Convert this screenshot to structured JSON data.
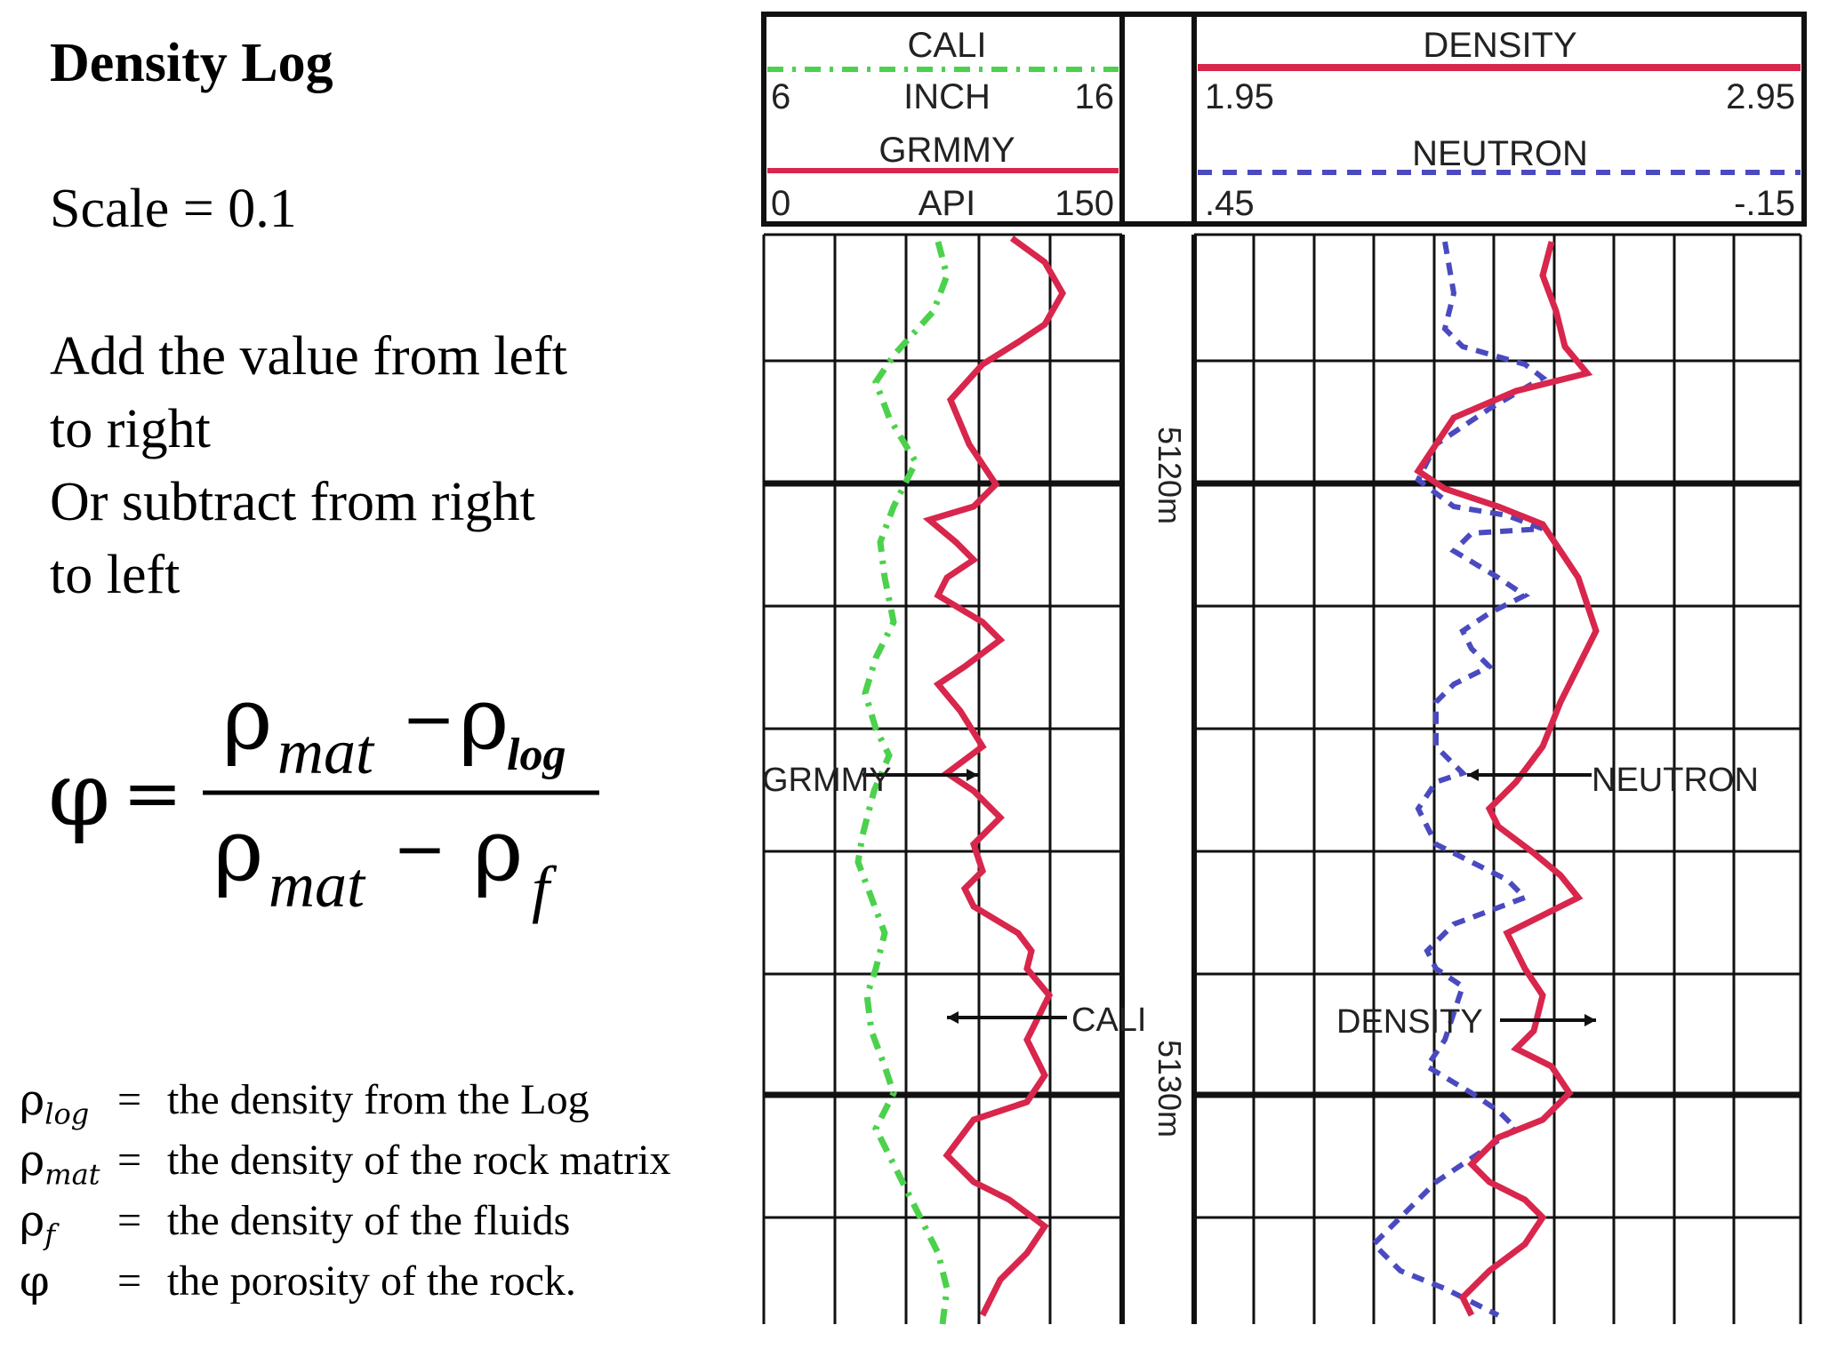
{
  "title": "Density Log",
  "scale": "Scale = 0.1",
  "instructions": [
    "Add the value from left",
    "to right",
    "Or subtract from right",
    "to left"
  ],
  "formula": {
    "lhs": "φ",
    "equals": "=",
    "rho": "ρ",
    "mat": "mat",
    "log": "log",
    "f": "f",
    "minus": "−"
  },
  "legend": [
    {
      "sym": "ρ",
      "sub": "log",
      "eq": "=",
      "desc": "the density from the Log"
    },
    {
      "sym": "ρ",
      "sub": "mat",
      "eq": "=",
      "desc": "the density of the rock matrix"
    },
    {
      "sym": "ρ",
      "sub": "f",
      "eq": "=",
      "desc": "the density of the fluids"
    },
    {
      "sym": "φ",
      "sub": "",
      "eq": "=",
      "desc": "the porosity of the rock."
    }
  ],
  "log_chart": {
    "track1": {
      "cali": {
        "name": "CALI",
        "unit": "INCH",
        "min": "6",
        "max": "16",
        "color": "#4cd14c"
      },
      "grmmy": {
        "name": "GRMMY",
        "unit": "API",
        "min": "0",
        "max": "150",
        "color": "#d8264c"
      }
    },
    "track3": {
      "density": {
        "name": "DENSITY",
        "min": "1.95",
        "max": "2.95",
        "color": "#d8264c"
      },
      "neutron": {
        "name": "NEUTRON",
        "min": ".45",
        "max": "-.15",
        "color": "#4a4ac0"
      }
    },
    "depths": [
      "5120m",
      "5130m"
    ],
    "annotations": {
      "grmmy": "GRMMY",
      "cali": "CALI",
      "neutron": "NEUTRON",
      "density": "DENSITY"
    }
  }
}
